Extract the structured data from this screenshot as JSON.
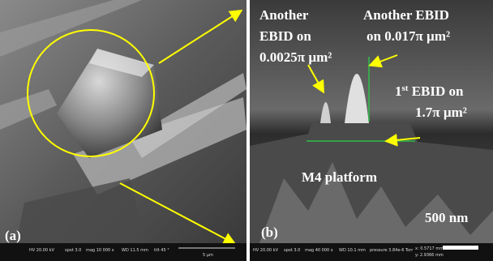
{
  "panels": [
    {
      "label": "(a)",
      "info_bar": [
        "HV 20.00 kV",
        "spot 3.0",
        "mag 10 000 x",
        "WD 11.5 mm",
        "tilt 45 °",
        "5 µm"
      ]
    },
    {
      "label": "(b)",
      "annotations": {
        "small": [
          "Another",
          "EBID on",
          "0.0025π µm²"
        ],
        "middle": [
          "Another EBID",
          "on 0.017π µm²"
        ],
        "first": {
          "number": "1",
          "suffix": "st",
          "text": " EBID on",
          "area": "1.7π µm²"
        }
      },
      "platform_label": "M4 platform",
      "scale_bar": "500 nm",
      "info_bar": [
        "HV 20.00 kV",
        "spot 3.0",
        "mag 40 000 x",
        "WD 10.1 mm",
        "pressure 3.84e-6 Torr",
        "x: 0.5717 mm",
        "y: 2.9366 mm"
      ]
    }
  ]
}
